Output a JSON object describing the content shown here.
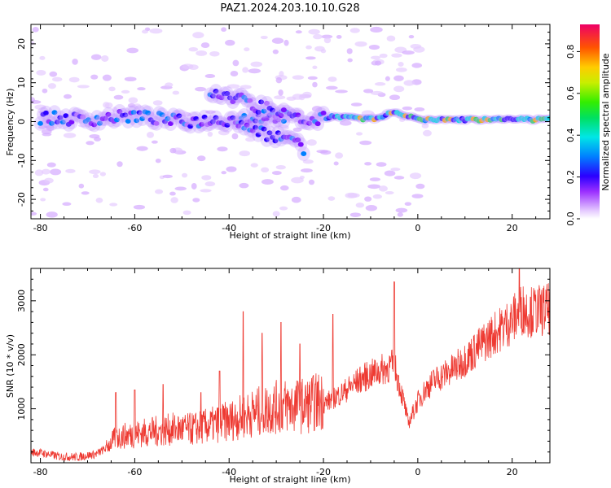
{
  "title": "PAZ1.2024.203.10.10.G28",
  "chart_data": [
    {
      "type": "heatmap",
      "xlabel": "Height of straight line (km)",
      "ylabel": "Frequency (Hz)",
      "xlim": [
        -82,
        28
      ],
      "ylim": [
        -25,
        25
      ],
      "xticks": [
        -80,
        -60,
        -40,
        -20,
        0,
        20
      ],
      "yticks": [
        -20,
        -10,
        0,
        10,
        20
      ],
      "colorbar": {
        "label": "Normalized spectral amplitude",
        "range": [
          0,
          0.93
        ],
        "ticks": [
          0.0,
          0.2,
          0.4,
          0.6,
          0.8
        ],
        "colormap": "purple-blue-cyan-green-yellow-red"
      },
      "ridges": [
        {
          "segment": "main",
          "x": [
            -80,
            -70,
            -60,
            -50,
            -40,
            -30,
            -22,
            -18,
            -10,
            -5,
            0,
            10,
            20,
            28
          ],
          "y": [
            1,
            0.5,
            1.5,
            0,
            0.5,
            1.5,
            0,
            1.5,
            0.5,
            2.5,
            0.5,
            0.5,
            0.5,
            0.5
          ]
        },
        {
          "segment": "upper-branch",
          "x": [
            -44,
            -38,
            -34,
            -28
          ],
          "y": [
            8,
            6,
            4,
            2
          ]
        },
        {
          "segment": "lower-branch",
          "x": [
            -38,
            -33,
            -28,
            -24
          ],
          "y": [
            -1,
            -3,
            -4,
            -7
          ]
        }
      ]
    },
    {
      "type": "line",
      "xlabel": "Height of straight line (km)",
      "ylabel": "SNR (10 * v/v)",
      "xlim": [
        -82,
        28
      ],
      "ylim": [
        0,
        3600
      ],
      "xticks": [
        -80,
        -60,
        -40,
        -20,
        0,
        20
      ],
      "yticks": [
        1000,
        2000,
        3000
      ],
      "series": [
        {
          "color": "#ee3a32",
          "x": [
            -82,
            -80,
            -76,
            -72,
            -68,
            -66,
            -64,
            -60,
            -56,
            -52,
            -48,
            -44,
            -40,
            -36,
            -32,
            -28,
            -24,
            -20,
            -16,
            -12,
            -8,
            -5,
            -3,
            -2,
            0,
            2,
            4,
            8,
            12,
            16,
            20,
            22,
            24,
            28
          ],
          "y": [
            180,
            170,
            100,
            90,
            150,
            260,
            420,
            480,
            520,
            560,
            560,
            620,
            700,
            800,
            900,
            950,
            950,
            1050,
            1250,
            1500,
            1650,
            1750,
            1100,
            700,
            1100,
            1350,
            1500,
            1700,
            2000,
            2300,
            2550,
            2750,
            2700,
            2750
          ],
          "spikes": [
            {
              "x": -64,
              "y": 1300
            },
            {
              "x": -60,
              "y": 1350
            },
            {
              "x": -54,
              "y": 1450
            },
            {
              "x": -46,
              "y": 1300
            },
            {
              "x": -42,
              "y": 1700
            },
            {
              "x": -37,
              "y": 2800
            },
            {
              "x": -33,
              "y": 2400
            },
            {
              "x": -29,
              "y": 2600
            },
            {
              "x": -25,
              "y": 2200
            },
            {
              "x": -18,
              "y": 2750
            },
            {
              "x": -5,
              "y": 3350
            },
            {
              "x": 21.5,
              "y": 3650
            }
          ]
        }
      ]
    }
  ]
}
